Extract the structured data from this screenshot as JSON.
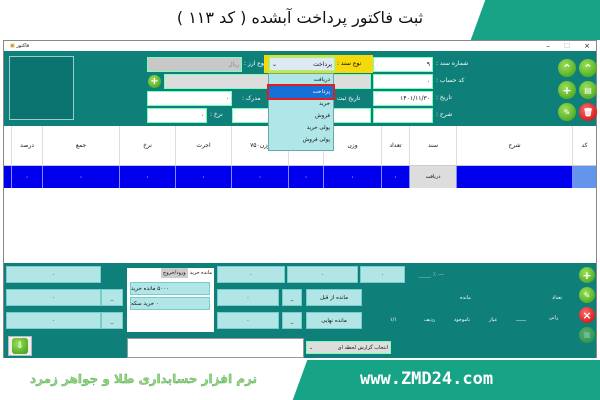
{
  "banner": {
    "title": "ثبت فاکتور پرداخت آبشده ( کد ۱۱۳ )"
  },
  "window": {
    "title": "فاکتور",
    "controls": {
      "minimize": "–",
      "maximize": "☐",
      "close": "×"
    }
  },
  "form": {
    "doc_number_label": "شماره سند :",
    "doc_number": "۹",
    "account_code_label": "کد حساب :",
    "account_code": "۰",
    "date_label": "تاریخ :",
    "date": "۱۴۰۱/۱۱/۳۰",
    "desc_label": "شرح :",
    "desc": "",
    "doc_type_label": "نوع سند :",
    "doc_type": "پرداخت",
    "currency_label": "نوع ارز :",
    "currency": "ریال",
    "reg_date_label": "تاریخ ثبت",
    "document_label": "مدرک :",
    "document": "۰",
    "rate_label": "نرخ :",
    "rate": "۰"
  },
  "doc_type_options": [
    "دریافت",
    "پرداخت",
    "خرید",
    "فروش",
    "پولی خرید",
    "پولی فروش"
  ],
  "grid": {
    "headers": [
      "درصد",
      "جمع",
      "نرخ",
      "اجرت",
      "وزن۷۵۰",
      "",
      "وزن",
      "تعداد",
      "سند",
      "شرح",
      "کد"
    ],
    "row": [
      "۰",
      "۰",
      "۰",
      "۰",
      "۰",
      "۰",
      "۰",
      "۰",
      "دریافت",
      "",
      ""
    ]
  },
  "bottom": {
    "tabs": [
      "مانده خرید",
      "ورود/خروج"
    ],
    "tab_items": [
      "۵۰۰۰ مانده خرید",
      "۰ خرید سکه"
    ],
    "fields": [
      "۰",
      "۰",
      "۰",
      "۰",
      "۰",
      "۰",
      "۰",
      "۰"
    ],
    "dash": "_",
    "percent_text": "— ٪ ____",
    "prev_balance": "مانده از قبل",
    "final_balance": "مانده نهایی",
    "balance_label": "مانده",
    "count_label": "تعداد",
    "ratio": "۱/۱",
    "row_label": "ردیف",
    "unavailable": "ناموجود",
    "karat": "عیار",
    "line": "____",
    "rani": "رانی",
    "report_select": "انتخاب گزارش لحظه ای"
  },
  "footer": {
    "tagline": "نرم افزار حسابداری طلا و جواهر زمرد",
    "site": "www.ZMD24.com"
  },
  "colors": {
    "teal": "#0f7f7a",
    "row_blue": "#0000ee",
    "accent_green": "#16a386",
    "yellow": "#f5d90a"
  }
}
